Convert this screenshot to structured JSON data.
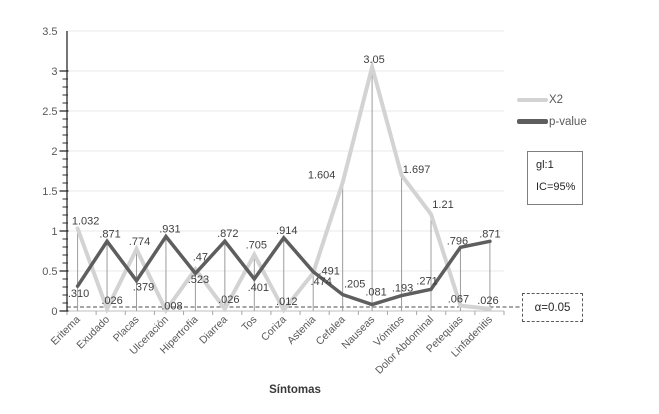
{
  "chart_data": {
    "type": "line",
    "title": "",
    "xlabel": "Síntomas",
    "ylabel": "",
    "ylim": [
      0,
      3.5
    ],
    "y_tick_step": 0.5,
    "y_minor_tick_step": 0.1,
    "y_tick_labels": [
      "0",
      "0.5",
      "1",
      "1.5",
      "2",
      "2.5",
      "3",
      "3.5"
    ],
    "grid": "horizontal-major",
    "legend_position": "right",
    "categories": [
      "Eritema",
      "Exudado",
      "Placas",
      "Ulceración",
      "Hipertrofia",
      "Diarrea",
      "Tos",
      "Coriza",
      "Astenia",
      "Cefalea",
      "Nauseas",
      "Vómitos",
      "Dolor Abdominal",
      "Petequias",
      "Linfadenitis"
    ],
    "series": [
      {
        "name": "X2",
        "color": "#d3d3d3",
        "stroke_width": 4,
        "values": [
          1.032,
          0.026,
          0.774,
          0.008,
          0.523,
          0.026,
          0.705,
          0.012,
          0.474,
          1.604,
          3.05,
          1.697,
          1.21,
          0.067,
          0.026
        ],
        "labels": [
          "1.032",
          ".026",
          ".774",
          ".008",
          ".523",
          ".026",
          ".705",
          ".012",
          ".474",
          "1.604",
          "3.05",
          "1.697",
          "1.21",
          ".067",
          ".026"
        ],
        "label_offsets": [
          [
            8,
            -4
          ],
          [
            5,
            -5
          ],
          [
            3,
            -4
          ],
          [
            6,
            -1
          ],
          [
            3,
            14
          ],
          [
            4,
            -6
          ],
          [
            2,
            -6
          ],
          [
            3,
            -5
          ],
          [
            8,
            12
          ],
          [
            -21,
            -4
          ],
          [
            2,
            -4
          ],
          [
            15,
            -2
          ],
          [
            12,
            -6
          ],
          [
            -2,
            -3
          ],
          [
            -2,
            -5
          ]
        ]
      },
      {
        "name": "p-value",
        "color": "#5e5e5e",
        "stroke_width": 3.5,
        "values": [
          0.31,
          0.871,
          0.379,
          0.931,
          0.47,
          0.872,
          0.401,
          0.914,
          0.491,
          0.205,
          0.081,
          0.193,
          0.271,
          0.796,
          0.871
        ],
        "labels": [
          ".310",
          ".871",
          ".379",
          ".931",
          ".47",
          ".872",
          ".401",
          ".914",
          ".491",
          ".205",
          ".081",
          ".193",
          ".271",
          ".796",
          ".871"
        ],
        "label_offsets": [
          [
            1,
            11
          ],
          [
            3,
            -4
          ],
          [
            7,
            10
          ],
          [
            4,
            -4
          ],
          [
            5,
            -13
          ],
          [
            3,
            -4
          ],
          [
            4,
            12
          ],
          [
            3,
            -4
          ],
          [
            16,
            3
          ],
          [
            12,
            -7
          ],
          [
            4,
            -9
          ],
          [
            1,
            -4
          ],
          [
            -4,
            -5
          ],
          [
            -3,
            -3
          ],
          [
            0,
            -4
          ]
        ]
      }
    ],
    "reference_line": {
      "value": 0.05,
      "label": "α=0.05"
    },
    "annotations": [
      {
        "text": "gl:1"
      },
      {
        "text": "IC=95%"
      }
    ],
    "palette": {
      "gridline": "#e8e8e8",
      "y_axis": "#2b2b2b",
      "x_axis": "#bfbfbf",
      "x_tick": "#a6a6a6",
      "drop_line": "#9c9c9c",
      "reference_dash": "#4d4d4d",
      "data_label_text": "#3f3f3f",
      "tick_label_text": "#595959",
      "category_label_text": "#595959"
    }
  }
}
